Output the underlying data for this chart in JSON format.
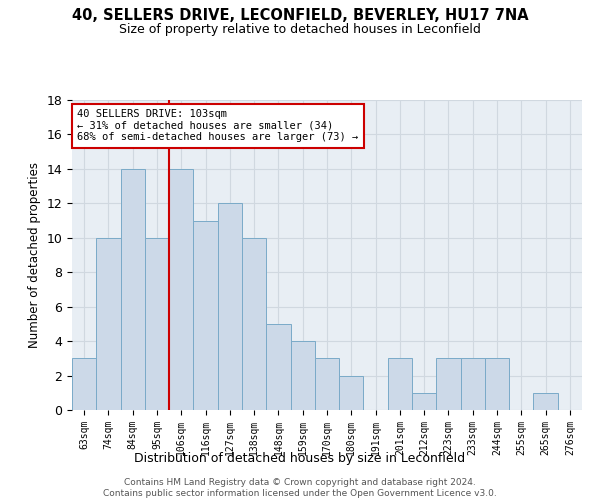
{
  "title1": "40, SELLERS DRIVE, LECONFIELD, BEVERLEY, HU17 7NA",
  "title2": "Size of property relative to detached houses in Leconfield",
  "xlabel": "Distribution of detached houses by size in Leconfield",
  "ylabel": "Number of detached properties",
  "bar_color": "#ccd9e8",
  "bar_edge_color": "#7aaac8",
  "categories": [
    "63sqm",
    "74sqm",
    "84sqm",
    "95sqm",
    "106sqm",
    "116sqm",
    "127sqm",
    "138sqm",
    "148sqm",
    "159sqm",
    "170sqm",
    "180sqm",
    "191sqm",
    "201sqm",
    "212sqm",
    "223sqm",
    "233sqm",
    "244sqm",
    "255sqm",
    "265sqm",
    "276sqm"
  ],
  "values": [
    3,
    10,
    14,
    10,
    14,
    11,
    12,
    10,
    5,
    4,
    3,
    2,
    0,
    3,
    1,
    3,
    3,
    3,
    0,
    1,
    0
  ],
  "vline_index": 4,
  "vline_color": "#cc0000",
  "annotation_line1": "40 SELLERS DRIVE: 103sqm",
  "annotation_line2": "← 31% of detached houses are smaller (34)",
  "annotation_line3": "68% of semi-detached houses are larger (73) →",
  "annotation_box_color": "#cc0000",
  "ylim": [
    0,
    18
  ],
  "yticks": [
    0,
    2,
    4,
    6,
    8,
    10,
    12,
    14,
    16,
    18
  ],
  "footer": "Contains HM Land Registry data © Crown copyright and database right 2024.\nContains public sector information licensed under the Open Government Licence v3.0.",
  "grid_color": "#d0d8e0",
  "bg_color": "#e8eef4"
}
